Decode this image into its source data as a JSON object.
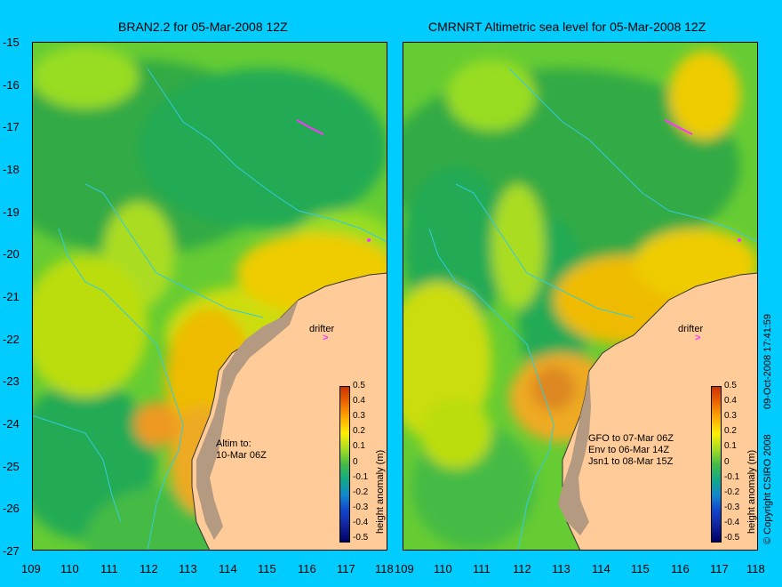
{
  "left_panel": {
    "title": "BRAN2.2 for 05-Mar-2008 12Z",
    "drifter_label": "drifter",
    "altim_note": [
      "Altim to:",
      "10-Mar 06Z"
    ]
  },
  "right_panel": {
    "title": "CMRNRT Altimetric sea level  for 05-Mar-2008 12Z",
    "drifter_label": "drifter",
    "altim_note": [
      "GFO to 07-Mar 06Z",
      "Env to 06-Mar 14Z",
      "Jsn1 to 08-Mar 15Z"
    ]
  },
  "y_ticks": [
    "-15",
    "-16",
    "-17",
    "-18",
    "-19",
    "-20",
    "-21",
    "-22",
    "-23",
    "-24",
    "-25",
    "-26",
    "-27"
  ],
  "x_ticks_left": [
    "109",
    "110",
    "111",
    "112",
    "113",
    "114",
    "115",
    "116",
    "117",
    "118"
  ],
  "x_ticks_right": [
    "109",
    "110",
    "111",
    "112",
    "113",
    "114",
    "115",
    "116",
    "117",
    "118"
  ],
  "colorbar": {
    "ticks": [
      "0.5",
      "0.4",
      "0.3",
      "0.2",
      "0.1",
      "0",
      "-0.1",
      "-0.2",
      "-0.3",
      "-0.4",
      "-0.5"
    ],
    "label": "height anomaly (m)"
  },
  "side_text": {
    "timestamp": "09-Oct-2008 17:41:59",
    "copyright": "© Copyright CSIRO 2008"
  },
  "colors": {
    "background": "#00ccff",
    "land": "#ffcc99",
    "coast_fill": "#b39a80",
    "drifter": "#ff33ff",
    "bathymetry": "#33ccdd"
  }
}
